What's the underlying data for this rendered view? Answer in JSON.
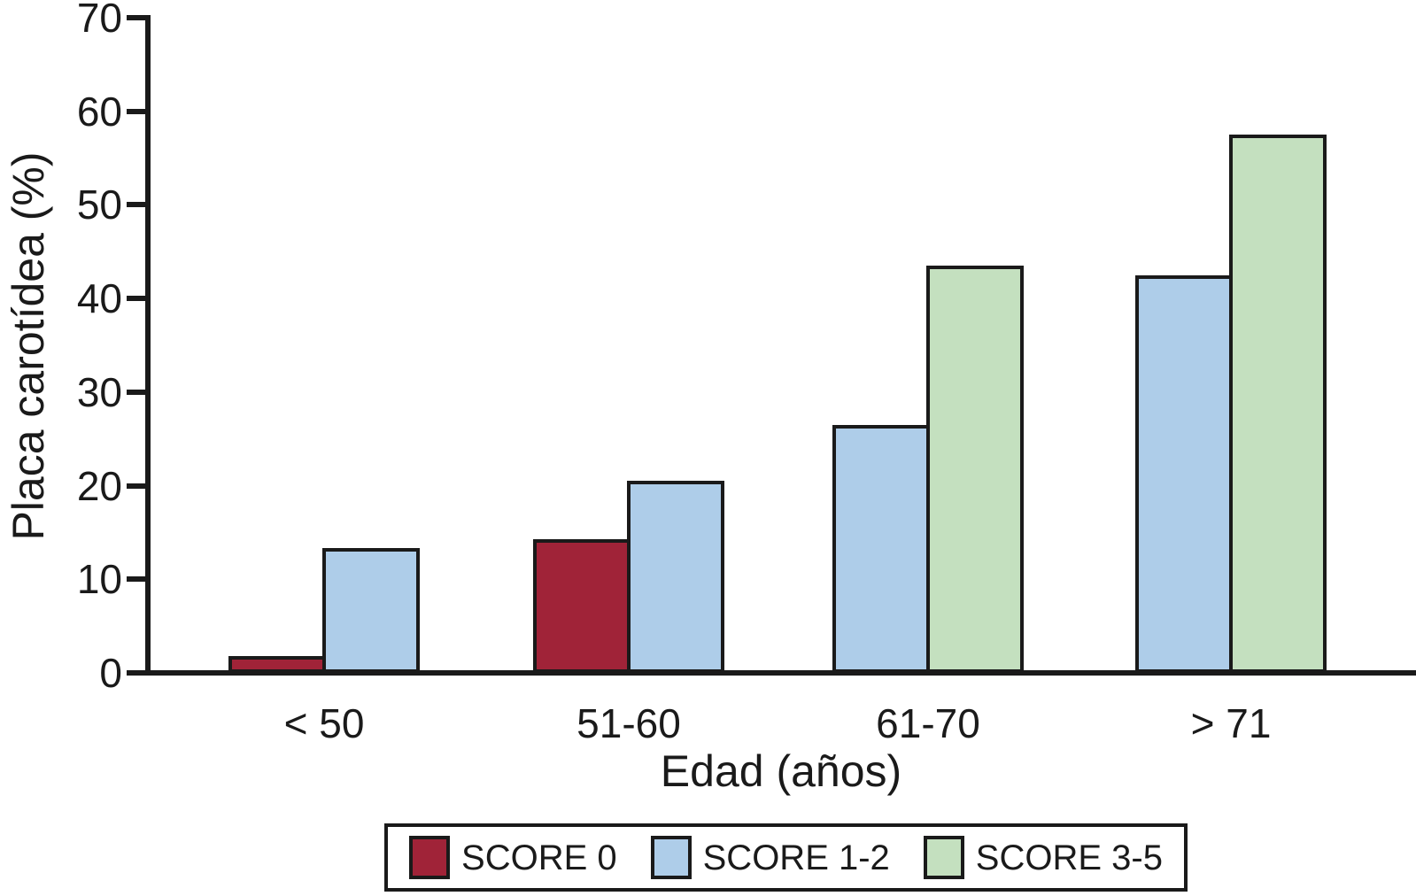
{
  "figure": {
    "background_color": "#ffffff",
    "axis_color": "#1a1a1a",
    "text_color": "#1a1a1a"
  },
  "chart_data": {
    "type": "bar",
    "title": "",
    "categories": [
      "< 50",
      "51-60",
      "61-70",
      "> 71"
    ],
    "series": [
      {
        "name": "SCORE 0",
        "color": "#a02338",
        "values": [
          1.8,
          14.3,
          null,
          null
        ]
      },
      {
        "name": "SCORE 1-2",
        "color": "#aecde9",
        "values": [
          13.3,
          20.5,
          26.5,
          42.5
        ]
      },
      {
        "name": "SCORE 3-5",
        "color": "#c4e0bf",
        "values": [
          null,
          null,
          43.5,
          57.5
        ]
      }
    ],
    "xlabel": "Edad (años)",
    "ylabel": "Placa carotídea (%)",
    "ylim": [
      0,
      70
    ],
    "yticks": [
      0,
      10,
      20,
      30,
      40,
      50,
      60,
      70
    ],
    "grid": false,
    "legend_position": "bottom-center"
  }
}
